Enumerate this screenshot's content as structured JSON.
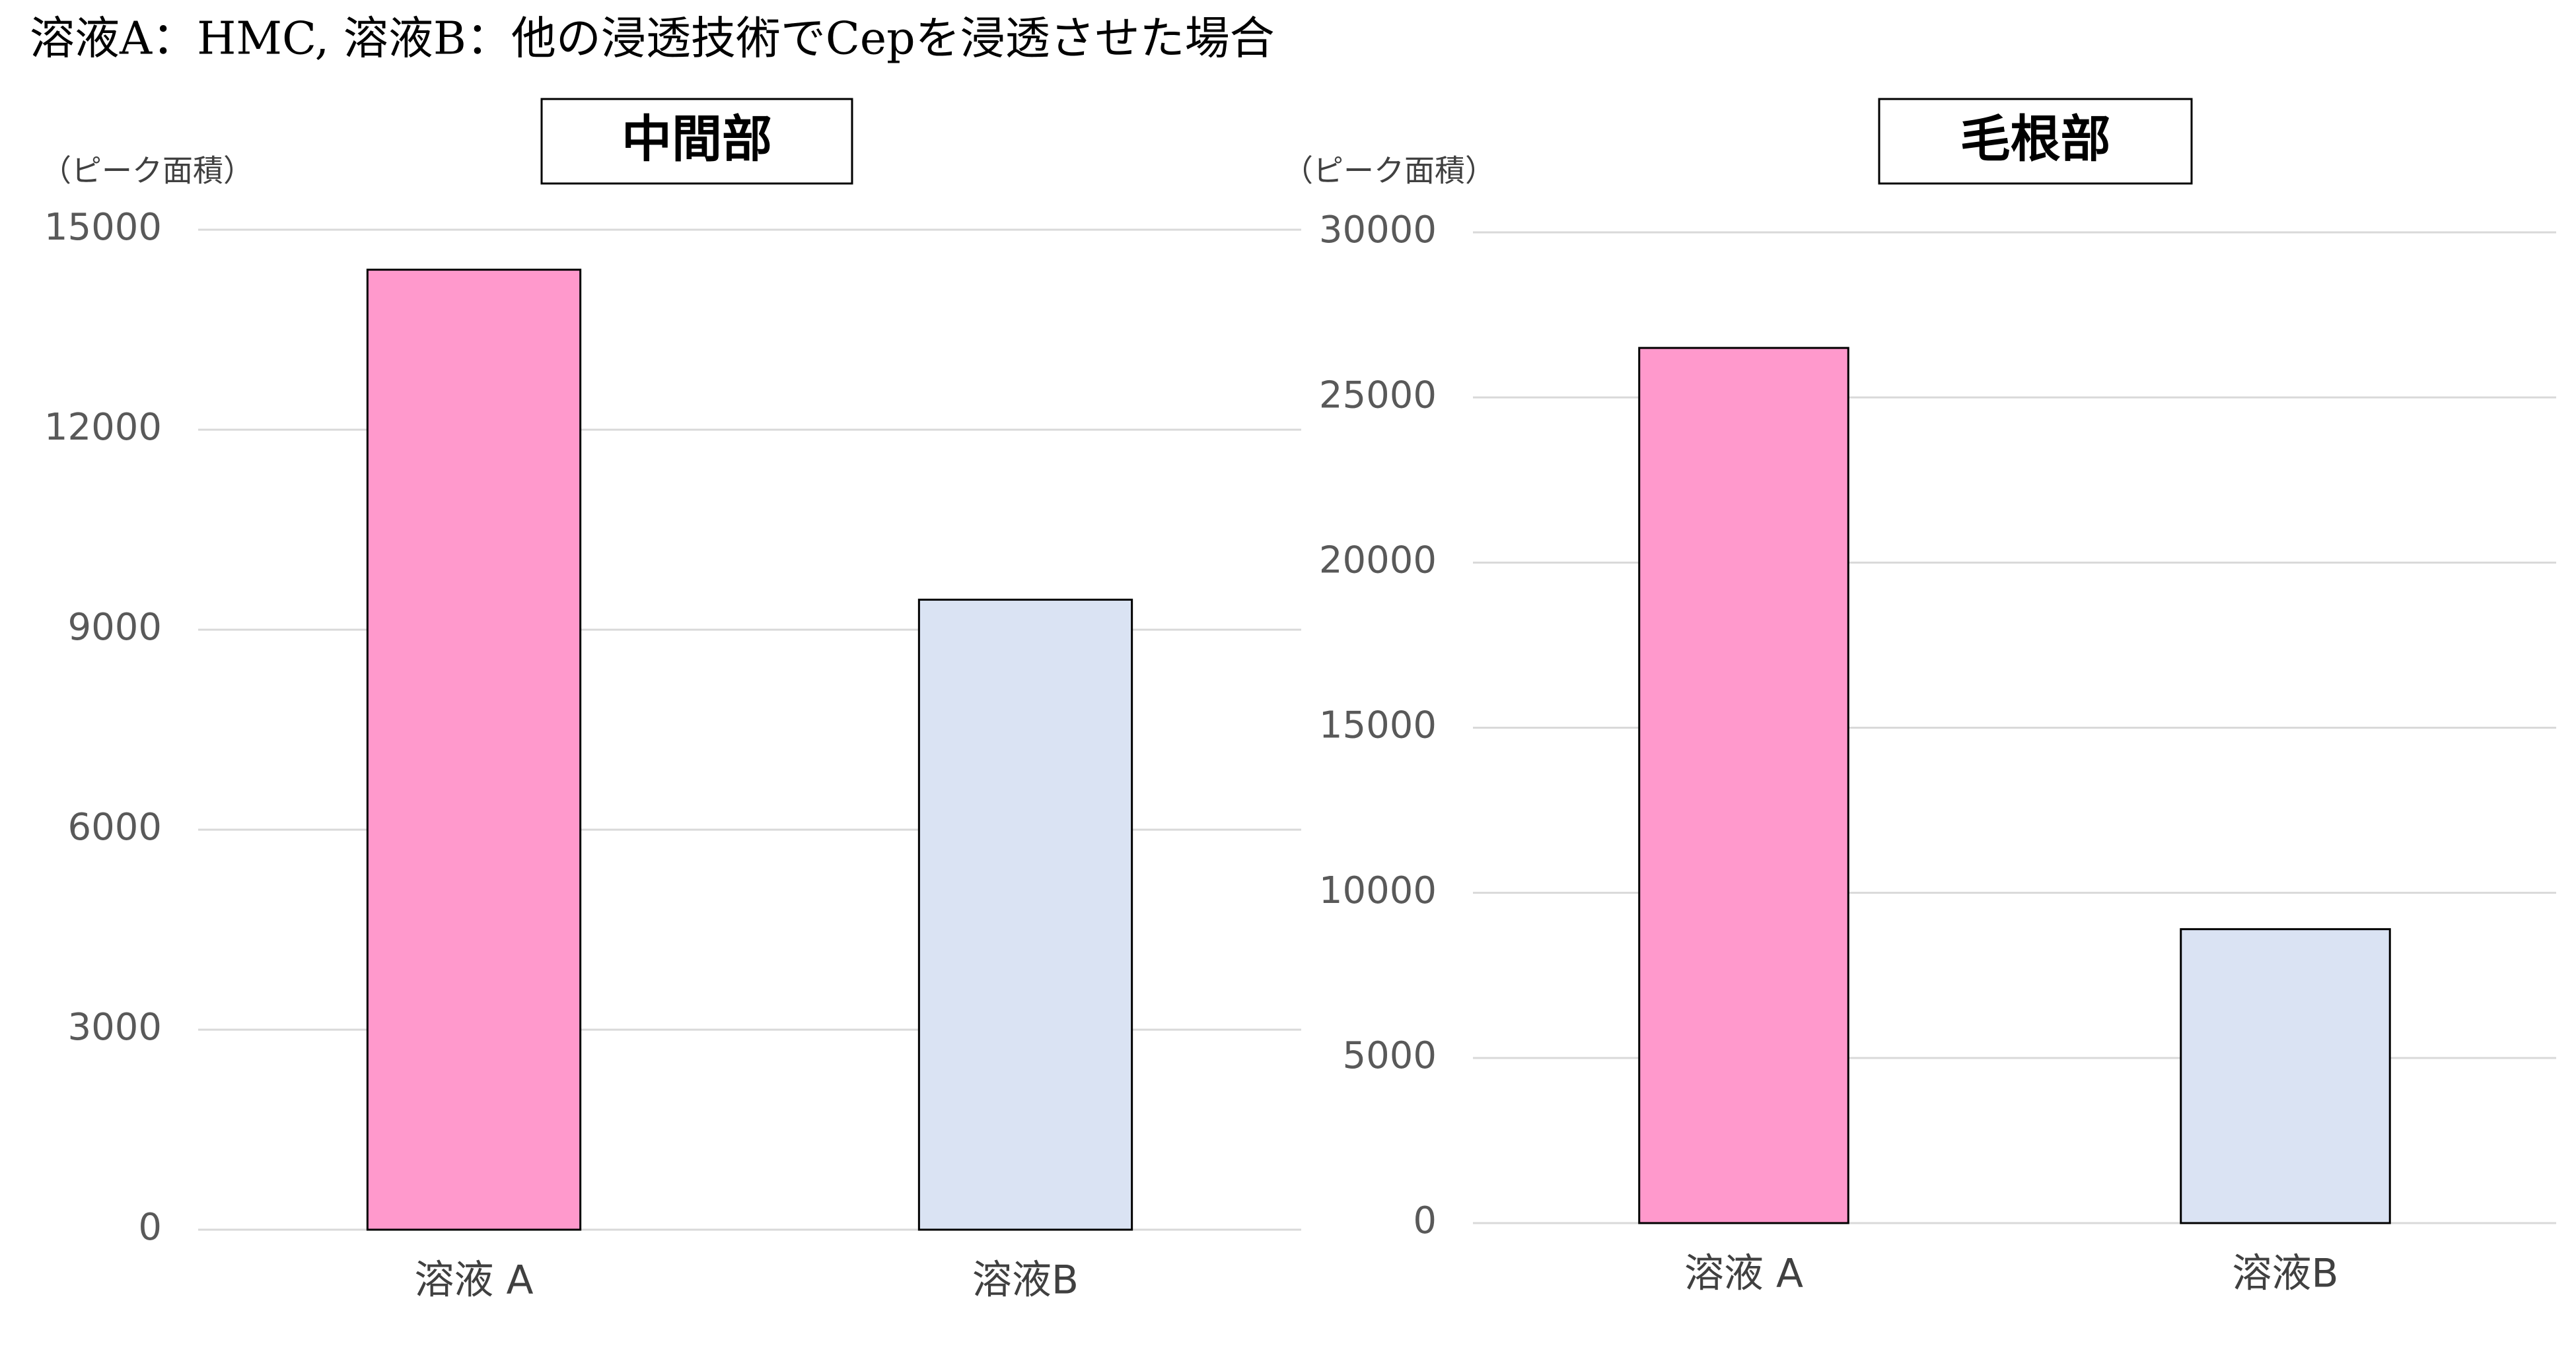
{
  "title": "溶液A：HMC, 溶液B：他の浸透技術でCepを浸透させた場合",
  "chart_data": [
    {
      "type": "bar",
      "title": "中間部",
      "y_label": "（ピーク面積）",
      "categories": [
        "溶液 A",
        "溶液B"
      ],
      "values": [
        14400,
        9450
      ],
      "colors": [
        "#ff99cc",
        "#dae3f3"
      ],
      "ylim": [
        0,
        15000
      ],
      "yticks": [
        0,
        3000,
        6000,
        9000,
        12000,
        15000
      ],
      "grid": true
    },
    {
      "type": "bar",
      "title": "毛根部",
      "y_label": "（ピーク面積）",
      "categories": [
        "溶液 A",
        "溶液B"
      ],
      "values": [
        26500,
        8900
      ],
      "colors": [
        "#ff99cc",
        "#dae3f3"
      ],
      "ylim": [
        0,
        30000
      ],
      "yticks": [
        0,
        5000,
        10000,
        15000,
        20000,
        25000,
        30000
      ],
      "grid": true
    }
  ]
}
